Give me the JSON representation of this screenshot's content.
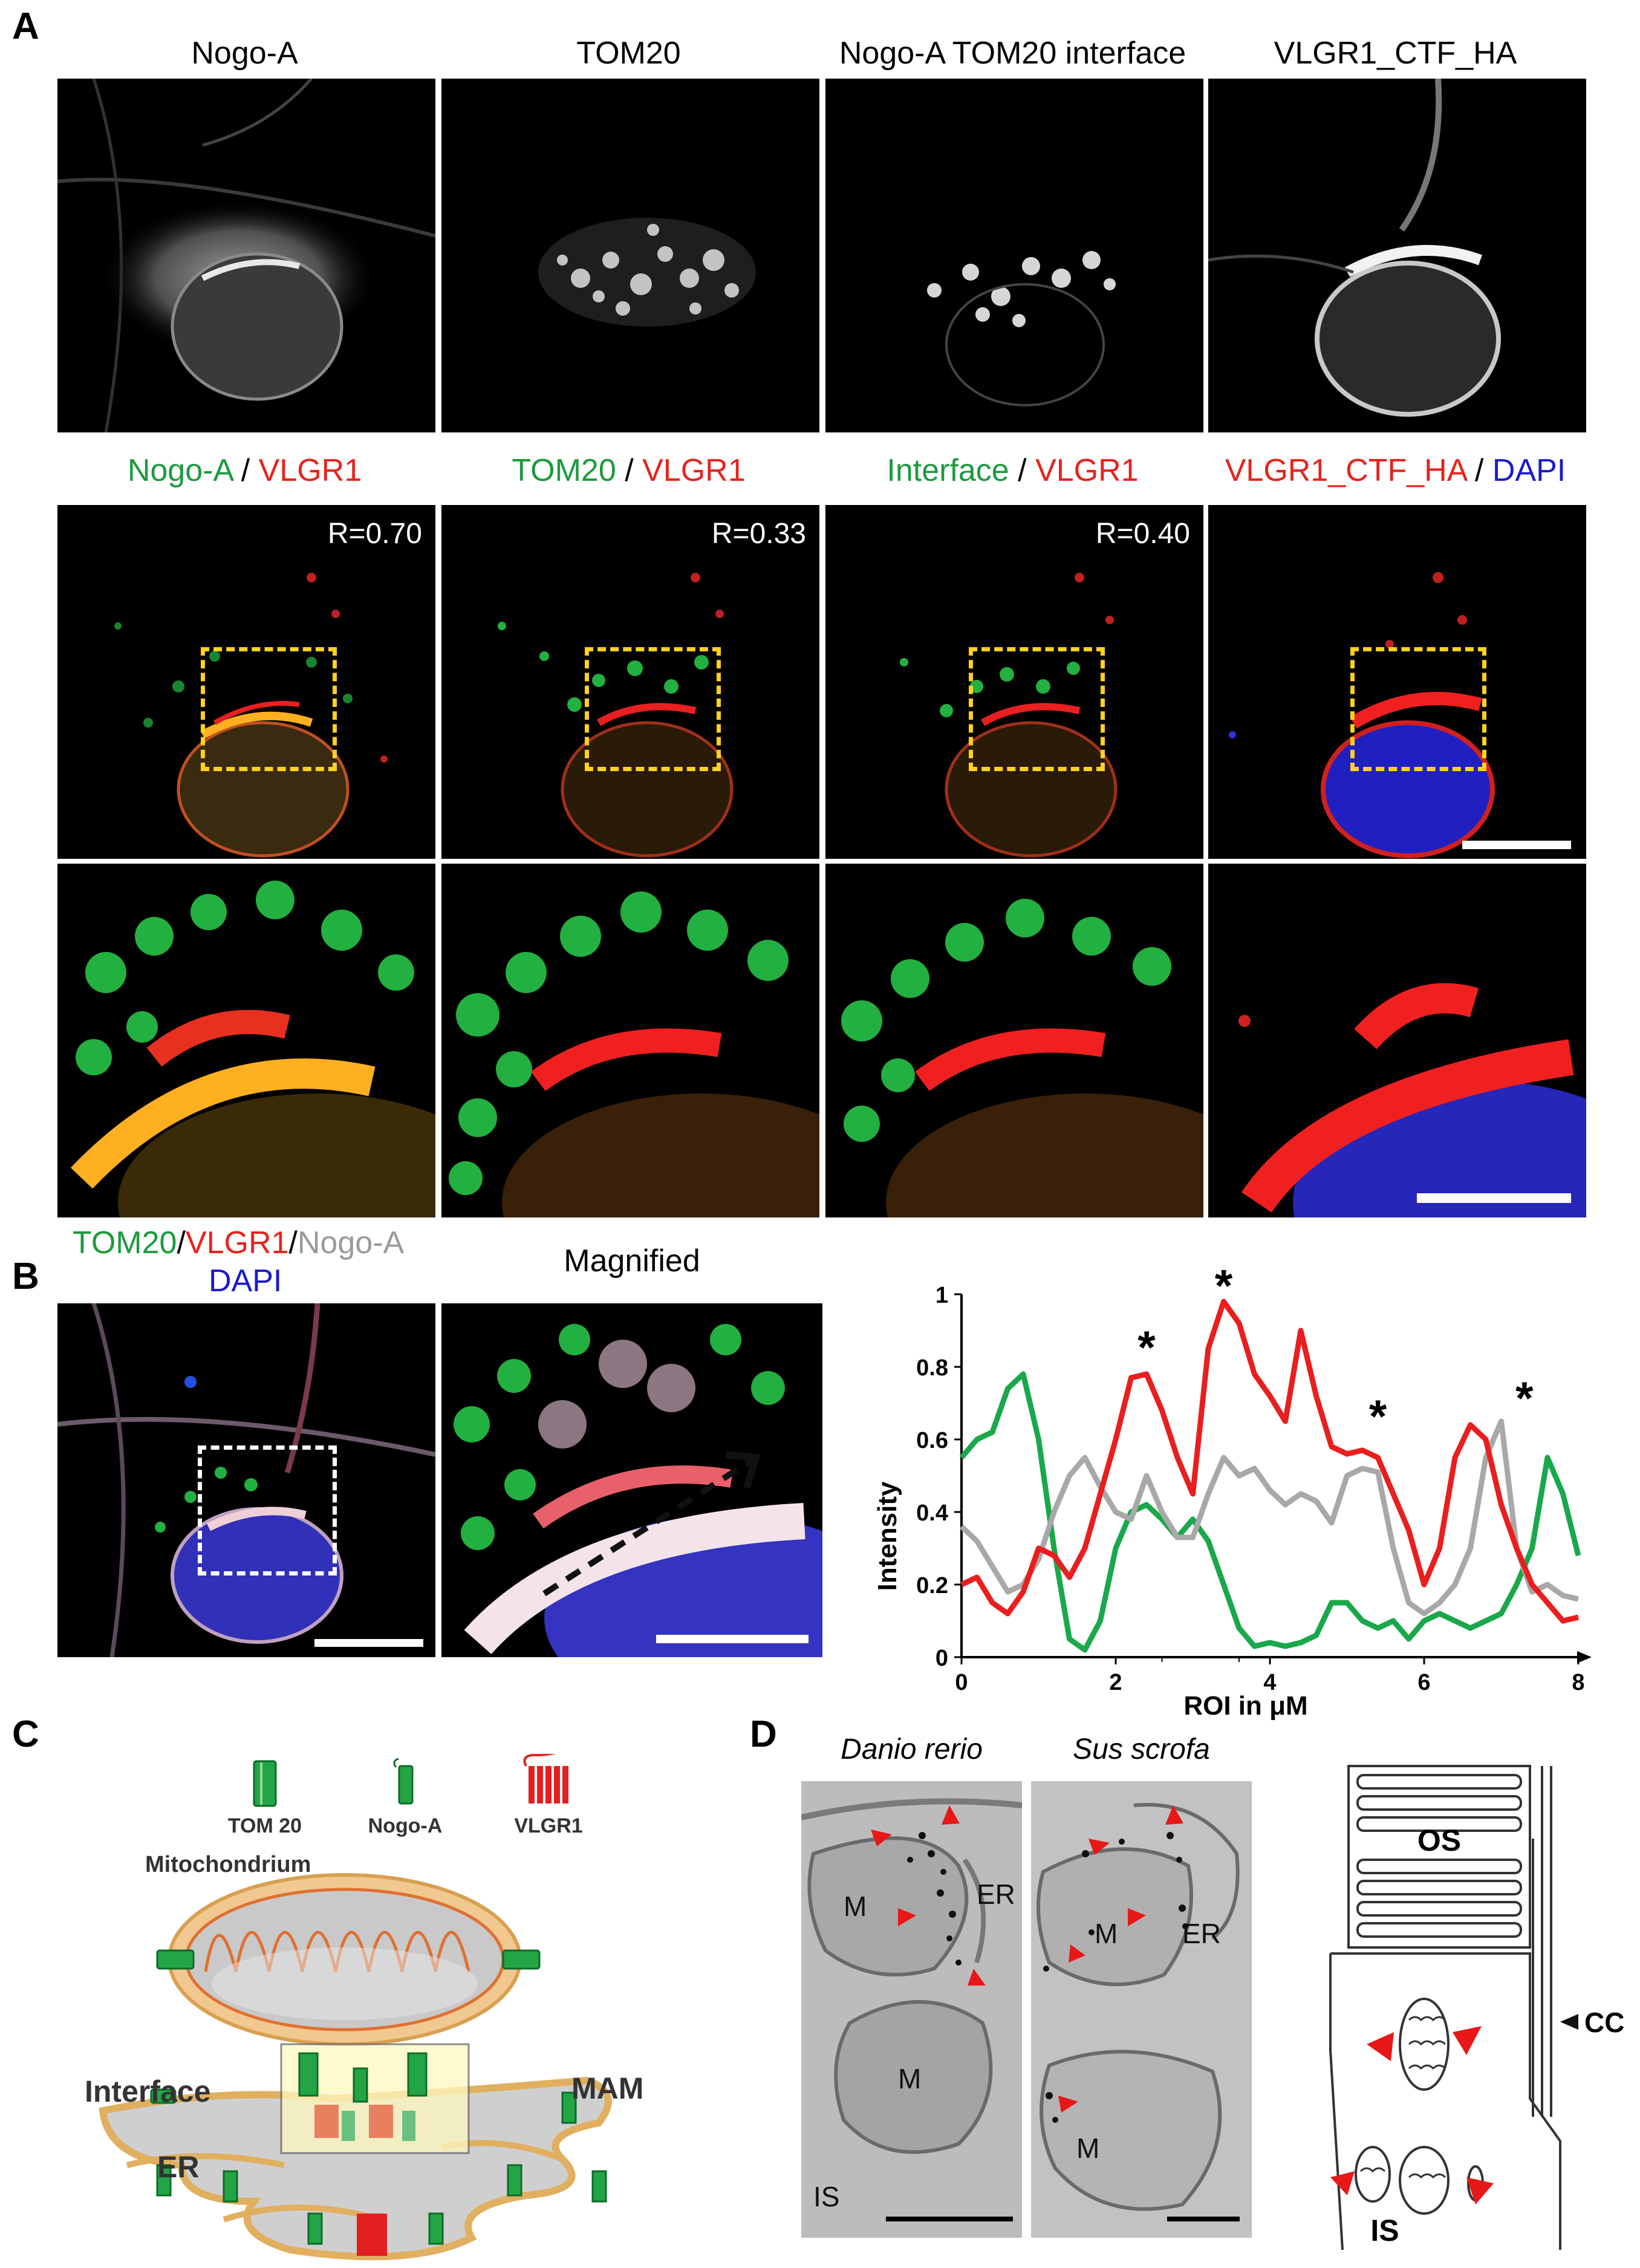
{
  "panels": {
    "a": "A",
    "b": "B",
    "c": "C",
    "d": "D"
  },
  "a": {
    "titles": [
      "Nogo-A",
      "TOM20",
      "Nogo-A TOM20 interface",
      "VLGR1_CTF_HA"
    ],
    "merge_titles": [
      {
        "first": "Nogo-A",
        "sep": " / ",
        "second": "VLGR1"
      },
      {
        "first": "TOM20",
        "sep": " / ",
        "second": "VLGR1"
      },
      {
        "first": "Interface",
        "sep": " / ",
        "second": "VLGR1"
      },
      {
        "first": "VLGR1_CTF_HA",
        "sep": " / ",
        "second": "DAPI"
      }
    ],
    "r_values": [
      "R=0.70",
      "R=0.33",
      "R=0.40"
    ]
  },
  "b": {
    "legend": {
      "tom20": "TOM20",
      "sep1": "/",
      "vlgr1": "VLGR1",
      "sep2": "/",
      "nogoa": "Nogo-A",
      "dapi": "DAPI"
    },
    "magnified_title": "Magnified"
  },
  "chart_data": {
    "type": "line",
    "xlabel": "ROI in μM",
    "ylabel": "Intensity",
    "xlim": [
      0,
      8
    ],
    "ylim": [
      0,
      1
    ],
    "x_ticks": [
      "0",
      "2",
      "4",
      "6",
      "8"
    ],
    "y_ticks": [
      "0",
      "0.2",
      "0.4",
      "0.6",
      "0.8",
      "1"
    ],
    "x": [
      0,
      0.2,
      0.4,
      0.6,
      0.8,
      1.0,
      1.2,
      1.4,
      1.6,
      1.8,
      2.0,
      2.2,
      2.4,
      2.6,
      2.8,
      3.0,
      3.2,
      3.4,
      3.6,
      3.8,
      4.0,
      4.2,
      4.4,
      4.6,
      4.8,
      5.0,
      5.2,
      5.4,
      5.6,
      5.8,
      6.0,
      6.2,
      6.4,
      6.6,
      6.8,
      7.0,
      7.2,
      7.4,
      7.6,
      7.8,
      8.0
    ],
    "series": [
      {
        "color": "#19a84a",
        "values": [
          0.55,
          0.6,
          0.62,
          0.74,
          0.78,
          0.6,
          0.3,
          0.05,
          0.02,
          0.1,
          0.3,
          0.4,
          0.42,
          0.38,
          0.33,
          0.38,
          0.32,
          0.2,
          0.08,
          0.03,
          0.04,
          0.03,
          0.04,
          0.06,
          0.15,
          0.15,
          0.1,
          0.08,
          0.1,
          0.05,
          0.1,
          0.12,
          0.1,
          0.08,
          0.1,
          0.12,
          0.2,
          0.3,
          0.55,
          0.45,
          0.28
        ]
      },
      {
        "color": "#ea1e1e",
        "values": [
          0.2,
          0.22,
          0.15,
          0.12,
          0.18,
          0.3,
          0.28,
          0.22,
          0.3,
          0.45,
          0.6,
          0.77,
          0.78,
          0.68,
          0.55,
          0.45,
          0.85,
          0.98,
          0.92,
          0.78,
          0.72,
          0.65,
          0.9,
          0.72,
          0.58,
          0.56,
          0.57,
          0.55,
          0.45,
          0.35,
          0.2,
          0.3,
          0.55,
          0.64,
          0.6,
          0.42,
          0.3,
          0.2,
          0.15,
          0.1,
          0.11
        ]
      },
      {
        "color": "#a8a8a8",
        "values": [
          0.36,
          0.32,
          0.25,
          0.18,
          0.2,
          0.27,
          0.4,
          0.5,
          0.55,
          0.47,
          0.4,
          0.38,
          0.5,
          0.4,
          0.33,
          0.33,
          0.45,
          0.55,
          0.5,
          0.52,
          0.46,
          0.42,
          0.45,
          0.43,
          0.37,
          0.5,
          0.52,
          0.51,
          0.3,
          0.15,
          0.12,
          0.15,
          0.2,
          0.3,
          0.55,
          0.65,
          0.3,
          0.18,
          0.2,
          0.17,
          0.16
        ]
      }
    ],
    "annotations": [
      "*",
      "*",
      "*",
      "*"
    ]
  },
  "c": {
    "legend": [
      "TOM 20",
      "Nogo-A",
      "VLGR1"
    ],
    "labels": {
      "mito": "Mitochondrium",
      "interface": "Interface",
      "mam": "MAM",
      "er": "ER"
    }
  },
  "d": {
    "titles": [
      "Danio rerio",
      "Sus scrofa"
    ],
    "em1": {
      "m1": "M",
      "m2": "M",
      "er": "ER",
      "is": "IS"
    },
    "em2": {
      "m1": "M",
      "m2": "M",
      "er": "ER"
    },
    "schematic": {
      "os": "OS",
      "cc": "CC",
      "is": "IS"
    }
  }
}
